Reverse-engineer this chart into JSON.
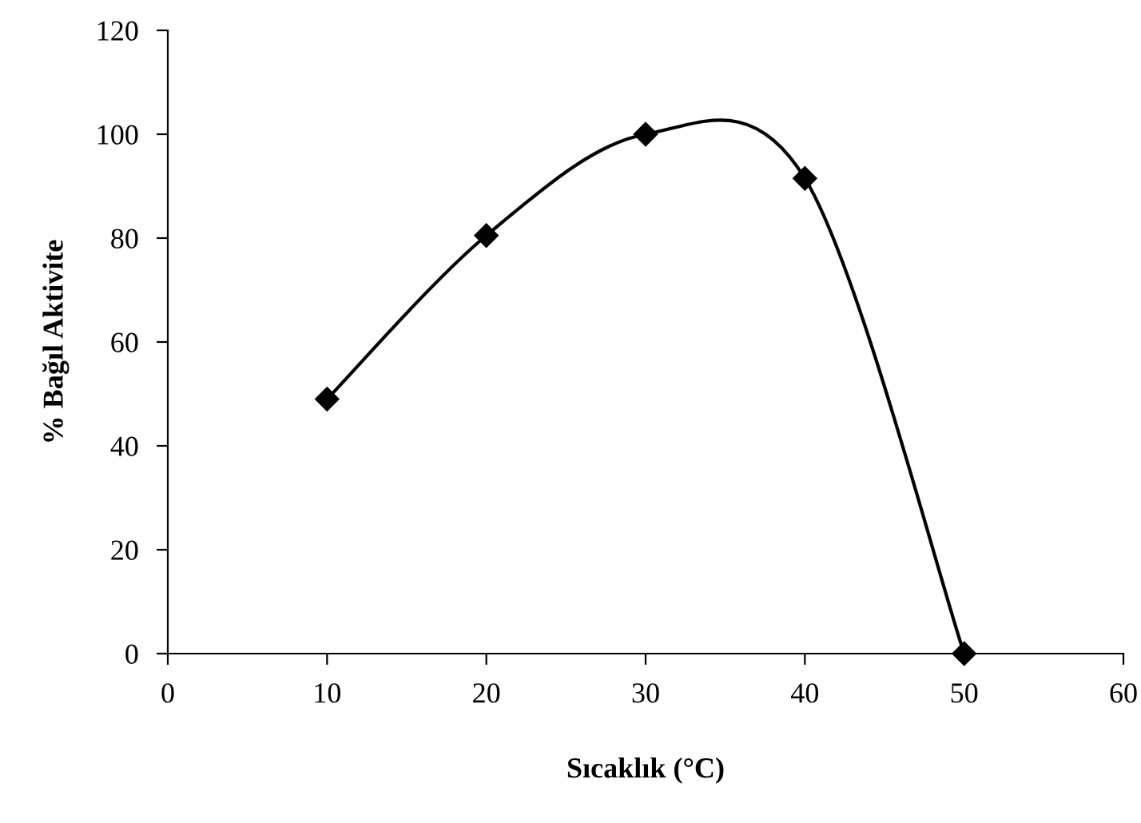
{
  "chart_data": {
    "type": "line",
    "xlabel": "Sıcaklık (°C)",
    "ylabel": "% Bağıl Aktivite",
    "x": [
      10,
      20,
      30,
      40,
      50
    ],
    "series": [
      {
        "color": "#000000",
        "values": [
          49,
          80.5,
          100,
          91.5,
          0
        ]
      }
    ],
    "xlim": [
      0,
      60
    ],
    "xticks": [
      0,
      10,
      20,
      30,
      40,
      50,
      60
    ],
    "ylim": [
      0,
      120
    ],
    "yticks": [
      0,
      20,
      40,
      60,
      80,
      100,
      120
    ],
    "marker": "diamond",
    "line_style": "solid",
    "grid": false
  }
}
